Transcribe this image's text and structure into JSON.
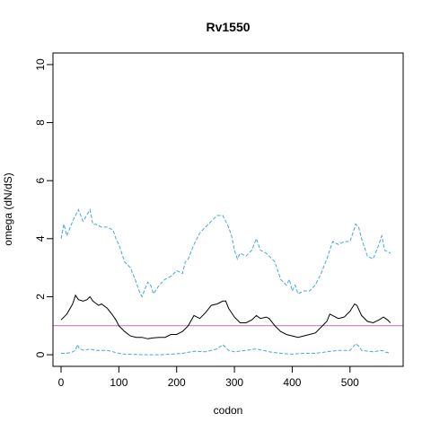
{
  "chart_data": {
    "type": "line",
    "title": "Rv1550",
    "xlabel": "codon",
    "ylabel": "omega (dN/dS)",
    "xlim": [
      -14,
      592
    ],
    "ylim": [
      -0.4,
      10.4
    ],
    "x_ticks": [
      0,
      100,
      200,
      300,
      400,
      500
    ],
    "y_ticks": [
      0,
      2,
      4,
      6,
      8,
      10
    ],
    "grid": false,
    "reference_line": {
      "y": 1,
      "color": "#c46bbd"
    },
    "series": [
      {
        "style": "dashed",
        "color": "#3fa9e0",
        "points": [
          [
            0,
            4.0
          ],
          [
            5,
            4.5
          ],
          [
            10,
            4.1
          ],
          [
            20,
            4.6
          ],
          [
            25,
            4.8
          ],
          [
            30,
            5.0
          ],
          [
            38,
            4.6
          ],
          [
            50,
            5.0
          ],
          [
            55,
            4.5
          ],
          [
            60,
            4.5
          ],
          [
            70,
            4.4
          ],
          [
            80,
            4.4
          ],
          [
            90,
            4.3
          ],
          [
            95,
            4.0
          ],
          [
            100,
            3.8
          ],
          [
            110,
            3.2
          ],
          [
            120,
            3.0
          ],
          [
            130,
            2.5
          ],
          [
            135,
            2.2
          ],
          [
            140,
            2.0
          ],
          [
            150,
            2.5
          ],
          [
            155,
            2.4
          ],
          [
            160,
            2.1
          ],
          [
            170,
            2.4
          ],
          [
            180,
            2.6
          ],
          [
            190,
            2.7
          ],
          [
            200,
            2.9
          ],
          [
            210,
            2.8
          ],
          [
            215,
            3.2
          ],
          [
            220,
            3.3
          ],
          [
            230,
            3.8
          ],
          [
            240,
            4.2
          ],
          [
            250,
            4.4
          ],
          [
            260,
            4.6
          ],
          [
            270,
            4.8
          ],
          [
            280,
            4.8
          ],
          [
            290,
            4.4
          ],
          [
            295,
            4.1
          ],
          [
            300,
            3.6
          ],
          [
            305,
            3.3
          ],
          [
            310,
            3.5
          ],
          [
            320,
            3.4
          ],
          [
            330,
            3.6
          ],
          [
            338,
            4.0
          ],
          [
            345,
            3.6
          ],
          [
            355,
            3.5
          ],
          [
            360,
            3.4
          ],
          [
            370,
            3.2
          ],
          [
            380,
            2.6
          ],
          [
            390,
            2.4
          ],
          [
            395,
            2.6
          ],
          [
            400,
            2.2
          ],
          [
            405,
            2.4
          ],
          [
            410,
            2.1
          ],
          [
            420,
            2.2
          ],
          [
            430,
            2.2
          ],
          [
            440,
            2.4
          ],
          [
            450,
            2.8
          ],
          [
            460,
            3.3
          ],
          [
            470,
            3.9
          ],
          [
            480,
            3.8
          ],
          [
            490,
            3.9
          ],
          [
            500,
            3.9
          ],
          [
            510,
            4.5
          ],
          [
            515,
            4.4
          ],
          [
            520,
            4.0
          ],
          [
            525,
            3.7
          ],
          [
            530,
            3.4
          ],
          [
            540,
            3.3
          ],
          [
            550,
            3.8
          ],
          [
            555,
            4.1
          ],
          [
            560,
            3.6
          ],
          [
            570,
            3.5
          ]
        ]
      },
      {
        "style": "solid",
        "color": "#000000",
        "points": [
          [
            0,
            1.2
          ],
          [
            10,
            1.4
          ],
          [
            20,
            1.75
          ],
          [
            25,
            2.05
          ],
          [
            30,
            1.9
          ],
          [
            38,
            1.85
          ],
          [
            45,
            1.9
          ],
          [
            50,
            2.0
          ],
          [
            55,
            1.85
          ],
          [
            65,
            1.7
          ],
          [
            70,
            1.75
          ],
          [
            80,
            1.6
          ],
          [
            88,
            1.4
          ],
          [
            95,
            1.2
          ],
          [
            100,
            1.0
          ],
          [
            110,
            0.8
          ],
          [
            120,
            0.65
          ],
          [
            130,
            0.6
          ],
          [
            140,
            0.6
          ],
          [
            150,
            0.55
          ],
          [
            160,
            0.58
          ],
          [
            170,
            0.6
          ],
          [
            180,
            0.6
          ],
          [
            190,
            0.7
          ],
          [
            200,
            0.7
          ],
          [
            210,
            0.8
          ],
          [
            220,
            1.0
          ],
          [
            230,
            1.35
          ],
          [
            240,
            1.25
          ],
          [
            250,
            1.45
          ],
          [
            260,
            1.7
          ],
          [
            270,
            1.75
          ],
          [
            280,
            1.85
          ],
          [
            285,
            1.85
          ],
          [
            290,
            1.6
          ],
          [
            300,
            1.3
          ],
          [
            310,
            1.1
          ],
          [
            320,
            1.1
          ],
          [
            330,
            1.2
          ],
          [
            338,
            1.35
          ],
          [
            345,
            1.25
          ],
          [
            355,
            1.3
          ],
          [
            360,
            1.25
          ],
          [
            370,
            1.0
          ],
          [
            380,
            0.8
          ],
          [
            390,
            0.7
          ],
          [
            400,
            0.65
          ],
          [
            410,
            0.6
          ],
          [
            420,
            0.65
          ],
          [
            430,
            0.7
          ],
          [
            440,
            0.75
          ],
          [
            450,
            0.95
          ],
          [
            460,
            1.15
          ],
          [
            465,
            1.4
          ],
          [
            470,
            1.35
          ],
          [
            480,
            1.25
          ],
          [
            490,
            1.3
          ],
          [
            500,
            1.5
          ],
          [
            508,
            1.75
          ],
          [
            512,
            1.7
          ],
          [
            520,
            1.35
          ],
          [
            530,
            1.15
          ],
          [
            540,
            1.1
          ],
          [
            550,
            1.2
          ],
          [
            558,
            1.3
          ],
          [
            565,
            1.2
          ],
          [
            570,
            1.1
          ]
        ]
      },
      {
        "style": "dashed",
        "color": "#3fa9e0",
        "points": [
          [
            0,
            0.05
          ],
          [
            10,
            0.05
          ],
          [
            20,
            0.1
          ],
          [
            25,
            0.15
          ],
          [
            28,
            0.35
          ],
          [
            32,
            0.2
          ],
          [
            40,
            0.15
          ],
          [
            50,
            0.2
          ],
          [
            60,
            0.15
          ],
          [
            70,
            0.15
          ],
          [
            80,
            0.15
          ],
          [
            90,
            0.1
          ],
          [
            100,
            0.05
          ],
          [
            110,
            0.02
          ],
          [
            130,
            0.01
          ],
          [
            150,
            0.0
          ],
          [
            170,
            0.0
          ],
          [
            190,
            0.02
          ],
          [
            210,
            0.05
          ],
          [
            230,
            0.12
          ],
          [
            250,
            0.1
          ],
          [
            270,
            0.2
          ],
          [
            280,
            0.35
          ],
          [
            285,
            0.25
          ],
          [
            290,
            0.15
          ],
          [
            300,
            0.1
          ],
          [
            320,
            0.15
          ],
          [
            338,
            0.2
          ],
          [
            350,
            0.15
          ],
          [
            360,
            0.1
          ],
          [
            380,
            0.05
          ],
          [
            400,
            0.02
          ],
          [
            420,
            0.05
          ],
          [
            440,
            0.05
          ],
          [
            460,
            0.1
          ],
          [
            480,
            0.15
          ],
          [
            500,
            0.15
          ],
          [
            510,
            0.38
          ],
          [
            515,
            0.3
          ],
          [
            520,
            0.15
          ],
          [
            540,
            0.1
          ],
          [
            555,
            0.15
          ],
          [
            560,
            0.1
          ],
          [
            570,
            0.05
          ]
        ]
      }
    ]
  }
}
